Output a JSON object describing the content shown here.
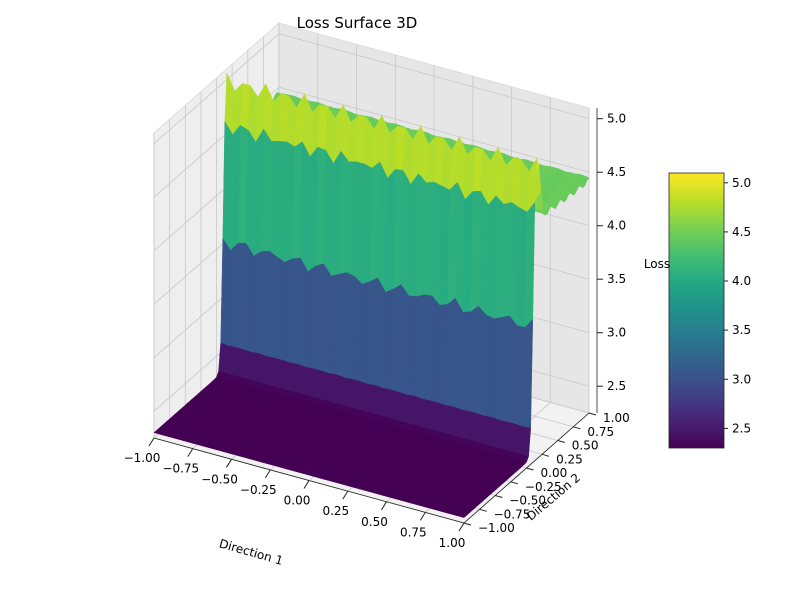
{
  "chart_data": {
    "type": "surface3d",
    "title": "Loss Surface 3D",
    "xlabel": "Direction 1",
    "ylabel": "Direction 2",
    "zlabel": "Loss",
    "xlim": [
      -1.0,
      1.0
    ],
    "ylim": [
      -1.0,
      1.0
    ],
    "zlim": [
      2.25,
      5.1
    ],
    "x_ticks": [
      "−1.00",
      "−0.75",
      "−0.50",
      "−0.25",
      "0.00",
      "0.25",
      "0.50",
      "0.75",
      "1.00"
    ],
    "y_ticks": [
      "−1.00",
      "−0.75",
      "−0.50",
      "−0.25",
      "0.00",
      "0.25",
      "0.50",
      "0.75",
      "1.00"
    ],
    "z_ticks": [
      "2.5",
      "3.0",
      "3.5",
      "4.0",
      "4.5",
      "5.0"
    ],
    "colormap": "viridis",
    "colorbar": {
      "range": [
        2.3,
        5.1
      ],
      "ticks": [
        "2.5",
        "3.0",
        "3.5",
        "4.0",
        "4.5",
        "5.0"
      ]
    },
    "surface": {
      "low_plateau": 2.3,
      "high_plateau": 4.45,
      "cliff_peak": 5.1,
      "cliff_location_y": 0.1,
      "ripple_frequency_x": 16
    },
    "grid": true
  }
}
